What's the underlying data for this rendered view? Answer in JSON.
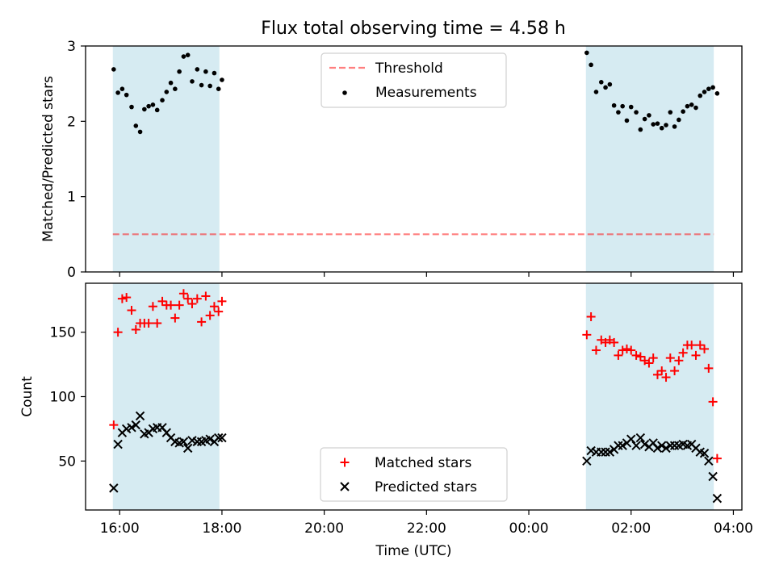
{
  "title": "Flux total observing time = 4.58 h",
  "colors": {
    "band": "#add8e6",
    "threshold": "#ff0000",
    "measurements": "#000000",
    "matched": "#ff0000",
    "predicted": "#000000"
  },
  "chart_data": [
    {
      "type": "scatter",
      "ylabel": "Matched/Predicted stars",
      "ylim": [
        0,
        3
      ],
      "yticks": [
        0,
        1,
        2,
        3
      ],
      "legend_position": "upper center",
      "shaded_intervals": [
        [
          "15:52",
          "17:57"
        ],
        [
          "01:07",
          "03:37"
        ]
      ],
      "threshold": {
        "name": "Threshold",
        "value": 0.5,
        "x_range": [
          "15:52",
          "03:37"
        ]
      },
      "series": [
        {
          "name": "Measurements",
          "points": [
            [
              "15:53",
              2.69
            ],
            [
              "15:58",
              2.38
            ],
            [
              "16:03",
              2.43
            ],
            [
              "16:08",
              2.35
            ],
            [
              "16:14",
              2.19
            ],
            [
              "16:19",
              1.94
            ],
            [
              "16:24",
              1.86
            ],
            [
              "16:29",
              2.16
            ],
            [
              "16:34",
              2.2
            ],
            [
              "16:39",
              2.22
            ],
            [
              "16:44",
              2.15
            ],
            [
              "16:50",
              2.28
            ],
            [
              "16:55",
              2.39
            ],
            [
              "17:00",
              2.51
            ],
            [
              "17:05",
              2.43
            ],
            [
              "17:10",
              2.66
            ],
            [
              "17:15",
              2.86
            ],
            [
              "17:20",
              2.88
            ],
            [
              "17:25",
              2.53
            ],
            [
              "17:31",
              2.69
            ],
            [
              "17:36",
              2.48
            ],
            [
              "17:41",
              2.66
            ],
            [
              "17:46",
              2.47
            ],
            [
              "17:51",
              2.64
            ],
            [
              "17:56",
              2.43
            ],
            [
              "18:00",
              2.55
            ],
            [
              "01:08",
              2.91
            ],
            [
              "01:13",
              2.75
            ],
            [
              "01:19",
              2.39
            ],
            [
              "01:25",
              2.52
            ],
            [
              "01:30",
              2.45
            ],
            [
              "01:35",
              2.49
            ],
            [
              "01:40",
              2.21
            ],
            [
              "01:45",
              2.12
            ],
            [
              "01:50",
              2.2
            ],
            [
              "01:55",
              2.01
            ],
            [
              "02:00",
              2.19
            ],
            [
              "02:06",
              2.12
            ],
            [
              "02:11",
              1.89
            ],
            [
              "02:16",
              2.03
            ],
            [
              "02:21",
              2.08
            ],
            [
              "02:26",
              1.96
            ],
            [
              "02:31",
              1.97
            ],
            [
              "02:36",
              1.91
            ],
            [
              "02:41",
              1.95
            ],
            [
              "02:46",
              2.12
            ],
            [
              "02:51",
              1.93
            ],
            [
              "02:56",
              2.02
            ],
            [
              "03:01",
              2.13
            ],
            [
              "03:06",
              2.2
            ],
            [
              "03:11",
              2.22
            ],
            [
              "03:16",
              2.18
            ],
            [
              "03:21",
              2.34
            ],
            [
              "03:26",
              2.39
            ],
            [
              "03:31",
              2.43
            ],
            [
              "03:36",
              2.45
            ],
            [
              "03:41",
              2.37
            ]
          ]
        }
      ]
    },
    {
      "type": "scatter",
      "xlabel": "Time (UTC)",
      "ylabel": "Count",
      "ylim": [
        12,
        188
      ],
      "yticks": [
        50,
        100,
        150
      ],
      "xlim": [
        "15:20",
        "04:10"
      ],
      "xticks": [
        "16:00",
        "18:00",
        "20:00",
        "22:00",
        "00:00",
        "02:00",
        "04:00"
      ],
      "legend_position": "lower center",
      "shaded_intervals": [
        [
          "15:52",
          "17:57"
        ],
        [
          "01:07",
          "03:37"
        ]
      ],
      "series": [
        {
          "name": "Matched stars",
          "marker": "+",
          "points": [
            [
              "15:53",
              78
            ],
            [
              "15:58",
              150
            ],
            [
              "16:03",
              176
            ],
            [
              "16:08",
              177
            ],
            [
              "16:14",
              167
            ],
            [
              "16:19",
              152
            ],
            [
              "16:24",
              157
            ],
            [
              "16:29",
              157
            ],
            [
              "16:34",
              157
            ],
            [
              "16:39",
              170
            ],
            [
              "16:44",
              157
            ],
            [
              "16:50",
              174
            ],
            [
              "16:55",
              171
            ],
            [
              "17:00",
              171
            ],
            [
              "17:05",
              161
            ],
            [
              "17:10",
              171
            ],
            [
              "17:15",
              180
            ],
            [
              "17:20",
              176
            ],
            [
              "17:25",
              172
            ],
            [
              "17:31",
              176
            ],
            [
              "17:36",
              158
            ],
            [
              "17:41",
              178
            ],
            [
              "17:46",
              163
            ],
            [
              "17:51",
              170
            ],
            [
              "17:56",
              166
            ],
            [
              "18:00",
              174
            ],
            [
              "01:08",
              148
            ],
            [
              "01:13",
              162
            ],
            [
              "01:19",
              136
            ],
            [
              "01:25",
              144
            ],
            [
              "01:30",
              142
            ],
            [
              "01:35",
              144
            ],
            [
              "01:40",
              142
            ],
            [
              "01:45",
              132
            ],
            [
              "01:50",
              136
            ],
            [
              "01:55",
              137
            ],
            [
              "02:00",
              136
            ],
            [
              "02:06",
              132
            ],
            [
              "02:11",
              131
            ],
            [
              "02:16",
              128
            ],
            [
              "02:21",
              126
            ],
            [
              "02:26",
              130
            ],
            [
              "02:31",
              117
            ],
            [
              "02:36",
              120
            ],
            [
              "02:41",
              115
            ],
            [
              "02:46",
              130
            ],
            [
              "02:51",
              120
            ],
            [
              "02:56",
              128
            ],
            [
              "03:01",
              134
            ],
            [
              "03:06",
              140
            ],
            [
              "03:11",
              140
            ],
            [
              "03:16",
              132
            ],
            [
              "03:21",
              140
            ],
            [
              "03:26",
              137
            ],
            [
              "03:31",
              122
            ],
            [
              "03:36",
              96
            ],
            [
              "03:41",
              52
            ]
          ]
        },
        {
          "name": "Predicted stars",
          "marker": "x",
          "points": [
            [
              "15:53",
              29
            ],
            [
              "15:58",
              63
            ],
            [
              "16:03",
              72
            ],
            [
              "16:08",
              75
            ],
            [
              "16:14",
              76
            ],
            [
              "16:19",
              78
            ],
            [
              "16:24",
              85
            ],
            [
              "16:29",
              71
            ],
            [
              "16:34",
              72
            ],
            [
              "16:39",
              75
            ],
            [
              "16:44",
              76
            ],
            [
              "16:50",
              76
            ],
            [
              "16:55",
              72
            ],
            [
              "17:00",
              68
            ],
            [
              "17:05",
              65
            ],
            [
              "17:10",
              64
            ],
            [
              "17:15",
              65
            ],
            [
              "17:20",
              60
            ],
            [
              "17:25",
              66
            ],
            [
              "17:31",
              65
            ],
            [
              "17:36",
              65
            ],
            [
              "17:41",
              66
            ],
            [
              "17:46",
              67
            ],
            [
              "17:51",
              65
            ],
            [
              "17:56",
              68
            ],
            [
              "18:00",
              68
            ],
            [
              "01:08",
              50
            ],
            [
              "01:13",
              58
            ],
            [
              "01:19",
              57
            ],
            [
              "01:25",
              57
            ],
            [
              "01:30",
              57
            ],
            [
              "01:35",
              57
            ],
            [
              "01:40",
              59
            ],
            [
              "01:45",
              62
            ],
            [
              "01:50",
              62
            ],
            [
              "01:55",
              64
            ],
            [
              "02:00",
              67
            ],
            [
              "02:06",
              62
            ],
            [
              "02:11",
              68
            ],
            [
              "02:16",
              63
            ],
            [
              "02:21",
              61
            ],
            [
              "02:26",
              64
            ],
            [
              "02:31",
              60
            ],
            [
              "02:36",
              62
            ],
            [
              "02:41",
              60
            ],
            [
              "02:46",
              62
            ],
            [
              "02:51",
              62
            ],
            [
              "02:56",
              62
            ],
            [
              "03:01",
              63
            ],
            [
              "03:06",
              62
            ],
            [
              "03:11",
              63
            ],
            [
              "03:16",
              60
            ],
            [
              "03:21",
              57
            ],
            [
              "03:26",
              56
            ],
            [
              "03:31",
              50
            ],
            [
              "03:36",
              38
            ],
            [
              "03:41",
              21
            ]
          ]
        }
      ]
    }
  ]
}
